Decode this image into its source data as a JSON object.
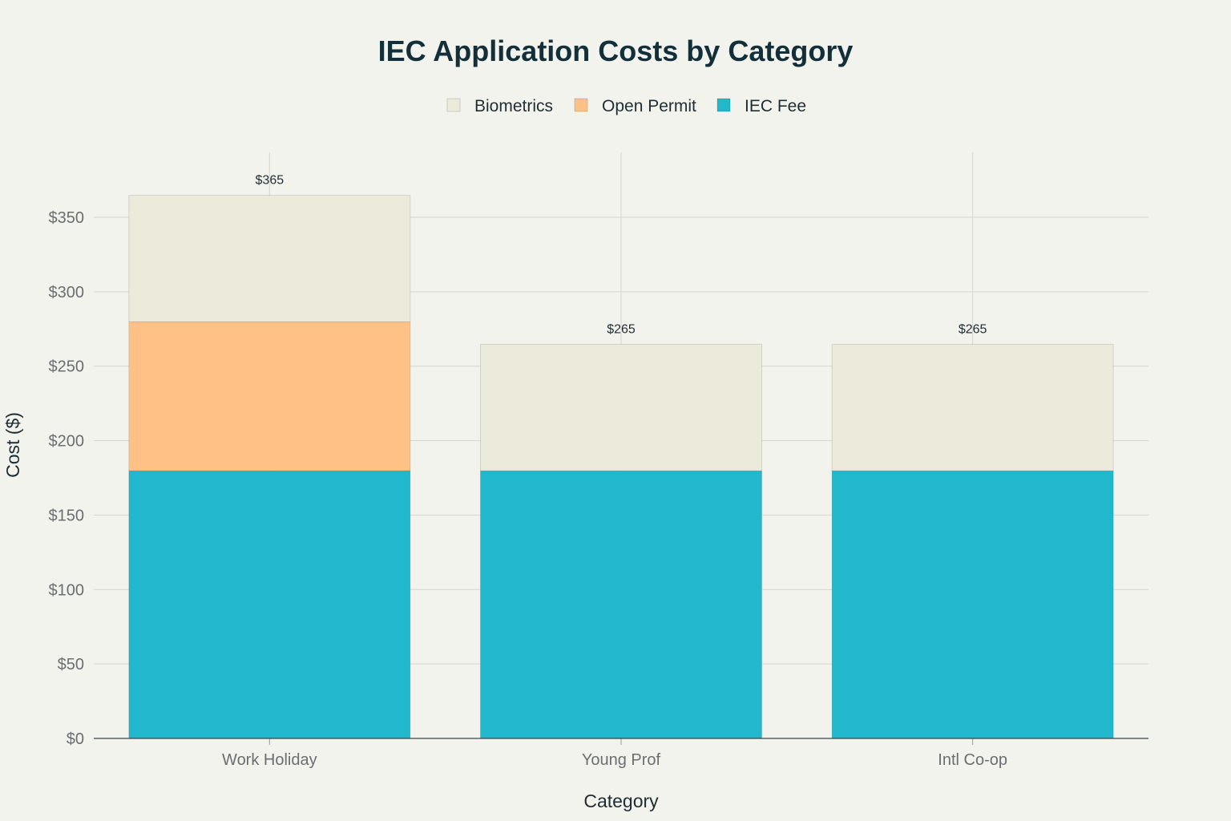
{
  "chart_data": {
    "type": "bar",
    "stacked": true,
    "title": "IEC Application Costs by Category",
    "xlabel": "Category",
    "ylabel": "Cost ($)",
    "categories": [
      "Work Holiday",
      "Young Prof",
      "Intl Co-op"
    ],
    "series": [
      {
        "name": "IEC Fee",
        "color": "#21b7cc",
        "values": [
          179.75,
          179.75,
          179.75
        ]
      },
      {
        "name": "Open Permit",
        "color": "#ffc185",
        "values": [
          100,
          0,
          0
        ]
      },
      {
        "name": "Biometrics",
        "color": "#eceada",
        "values": [
          85,
          85,
          85
        ]
      }
    ],
    "legend_order": [
      "Biometrics",
      "Open Permit",
      "IEC Fee"
    ],
    "totals": [
      "$365",
      "$265",
      "$265"
    ],
    "ylim": [
      0,
      360
    ],
    "yticks": [
      0,
      50,
      100,
      150,
      200,
      250,
      300,
      350
    ],
    "ytick_labels": [
      "$0",
      "$50",
      "$100",
      "$150",
      "$200",
      "$250",
      "$300",
      "$350"
    ],
    "grid": true,
    "legend_position": "top-center"
  }
}
